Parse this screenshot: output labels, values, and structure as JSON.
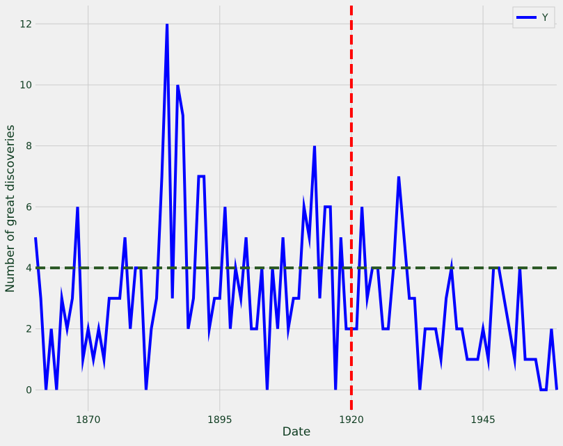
{
  "chart_data": {
    "type": "line",
    "xlabel": "Date",
    "ylabel": "Number of great discoveries",
    "xlim": [
      1860,
      1959
    ],
    "ylim": [
      -0.7,
      12.6
    ],
    "x_ticks": [
      1870,
      1895,
      1920,
      1945
    ],
    "y_ticks": [
      0,
      2,
      4,
      6,
      8,
      10,
      12
    ],
    "grid": true,
    "legend": "top-right",
    "series": [
      {
        "name": "Y",
        "color": "#0000ff",
        "x": [
          1860,
          1861,
          1862,
          1863,
          1864,
          1865,
          1866,
          1867,
          1868,
          1869,
          1870,
          1871,
          1872,
          1873,
          1874,
          1875,
          1876,
          1877,
          1878,
          1879,
          1880,
          1881,
          1882,
          1883,
          1884,
          1885,
          1886,
          1887,
          1888,
          1889,
          1890,
          1891,
          1892,
          1893,
          1894,
          1895,
          1896,
          1897,
          1898,
          1899,
          1900,
          1901,
          1902,
          1903,
          1904,
          1905,
          1906,
          1907,
          1908,
          1909,
          1910,
          1911,
          1912,
          1913,
          1914,
          1915,
          1916,
          1917,
          1918,
          1919,
          1920,
          1921,
          1922,
          1923,
          1924,
          1925,
          1926,
          1927,
          1928,
          1929,
          1930,
          1931,
          1932,
          1933,
          1934,
          1935,
          1936,
          1937,
          1938,
          1939,
          1940,
          1941,
          1942,
          1943,
          1944,
          1945,
          1946,
          1947,
          1948,
          1949,
          1950,
          1951,
          1952,
          1953,
          1954,
          1955,
          1956,
          1957,
          1958,
          1959
        ],
        "values": [
          5,
          3,
          0,
          2,
          0,
          3,
          2,
          3,
          6,
          1,
          2,
          1,
          2,
          1,
          3,
          3,
          3,
          5,
          2,
          4,
          4,
          0,
          2,
          3,
          7,
          12,
          3,
          10,
          9,
          2,
          3,
          7,
          7,
          2,
          3,
          3,
          6,
          2,
          4,
          3,
          5,
          2,
          2,
          4,
          0,
          4,
          2,
          5,
          2,
          3,
          3,
          6,
          5,
          8,
          3,
          6,
          6,
          0,
          5,
          2,
          2,
          2,
          6,
          3,
          4,
          4,
          2,
          2,
          4,
          7,
          5,
          3,
          3,
          0,
          2,
          2,
          2,
          1,
          3,
          4,
          2,
          2,
          1,
          1,
          1,
          2,
          1,
          4,
          4,
          3,
          2,
          1,
          4,
          1,
          1,
          1,
          0,
          0,
          2,
          0
        ]
      }
    ],
    "reference_lines": [
      {
        "orientation": "horizontal",
        "value": 4,
        "color": "#2d5a27",
        "style": "dashed"
      },
      {
        "orientation": "vertical",
        "value": 1920,
        "color": "#ff0000",
        "style": "dashed"
      }
    ]
  }
}
